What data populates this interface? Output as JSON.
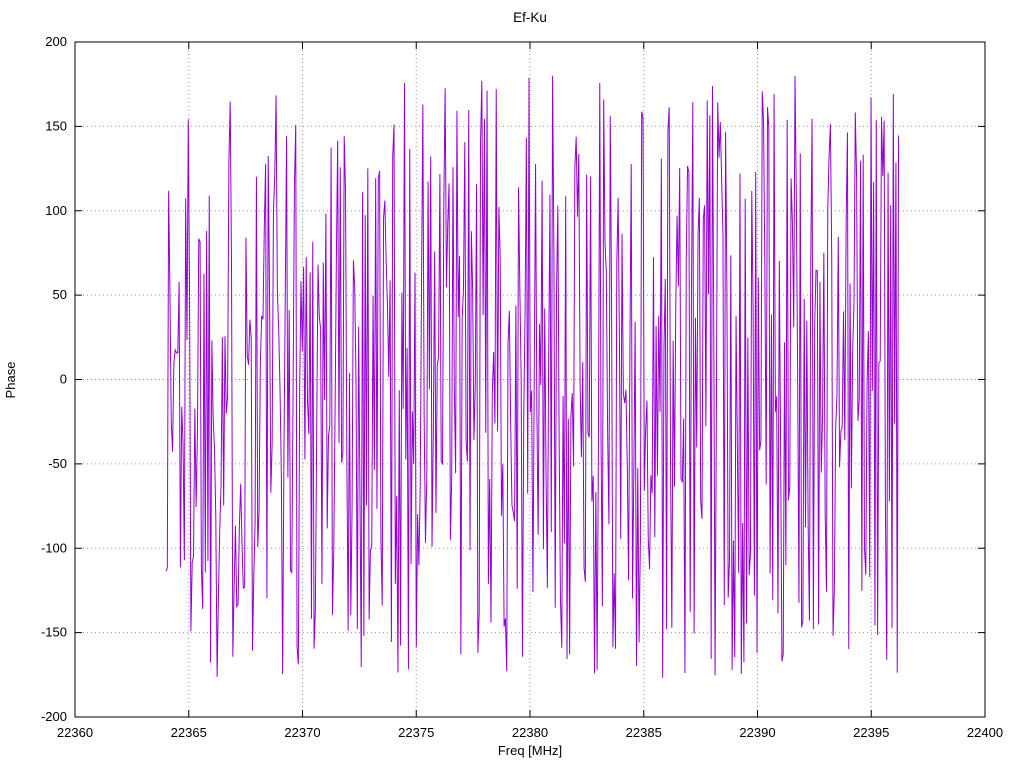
{
  "chart_data": {
    "type": "line",
    "title": "Ef-Ku",
    "xlabel": "Freq [MHz]",
    "ylabel": "Phase",
    "xlim": [
      22360,
      22400
    ],
    "ylim": [
      -200,
      200
    ],
    "x_ticks": [
      22360,
      22365,
      22370,
      22375,
      22380,
      22385,
      22390,
      22395,
      22400
    ],
    "y_ticks": [
      -200,
      -150,
      -100,
      -50,
      0,
      50,
      100,
      150,
      200
    ],
    "grid": "dotted",
    "legend_position": "none",
    "grid_color": "#9a9a9a",
    "border_color": "#000000",
    "background_color": "#ffffff",
    "series": [
      {
        "name": "phase",
        "color": "#9400d3",
        "x_start": 22364.0,
        "x_end": 22396.2,
        "n_points": 560,
        "y_model": "uniform-random-wrapped-phase",
        "y_min": -180,
        "y_max": 180,
        "seed": 1337
      }
    ]
  }
}
